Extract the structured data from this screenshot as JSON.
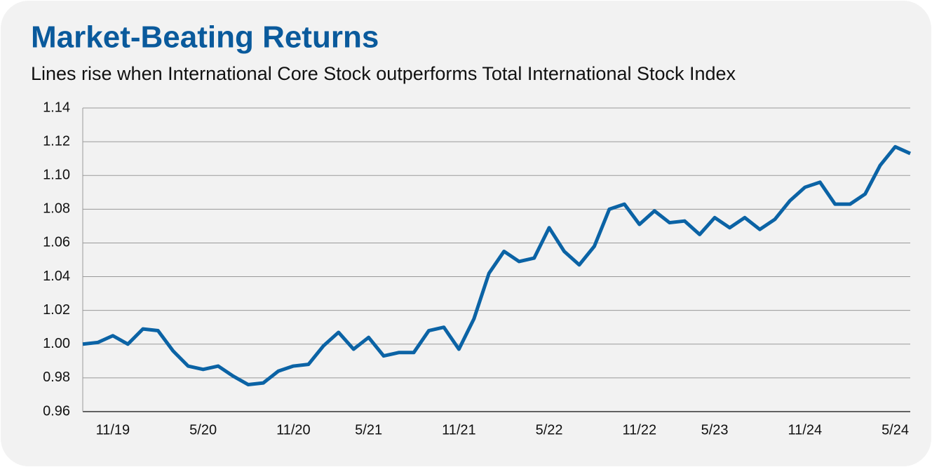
{
  "chart_data": {
    "type": "line",
    "title": "Market-Beating Returns",
    "subtitle": "Lines rise when International Core Stock outperforms Total International Stock Index",
    "categories": [
      null,
      null,
      "11/19",
      null,
      null,
      null,
      null,
      null,
      "5/20",
      null,
      null,
      null,
      null,
      null,
      "11/20",
      null,
      null,
      null,
      null,
      "5/21",
      null,
      null,
      null,
      null,
      null,
      "11/21",
      null,
      null,
      null,
      null,
      null,
      "5/22",
      null,
      null,
      null,
      null,
      null,
      "11/22",
      null,
      null,
      null,
      null,
      "5/23",
      null,
      null,
      null,
      null,
      null,
      "11/24",
      null,
      null,
      null,
      null,
      null,
      "5/24",
      null
    ],
    "series": [
      {
        "color": "#0b63a5",
        "values": [
          1.0,
          1.001,
          1.005,
          1.0,
          1.009,
          1.008,
          0.996,
          0.987,
          0.985,
          0.987,
          0.981,
          0.976,
          0.977,
          0.984,
          0.987,
          0.988,
          0.999,
          1.007,
          0.997,
          1.004,
          0.993,
          0.995,
          0.995,
          1.008,
          1.01,
          0.997,
          1.015,
          1.042,
          1.055,
          1.049,
          1.051,
          1.069,
          1.055,
          1.047,
          1.058,
          1.08,
          1.083,
          1.071,
          1.079,
          1.072,
          1.073,
          1.065,
          1.075,
          1.069,
          1.075,
          1.068,
          1.074,
          1.085,
          1.093,
          1.096,
          1.083,
          1.083,
          1.089,
          1.106,
          1.117,
          1.113
        ]
      }
    ],
    "ylim": [
      0.96,
      1.14
    ],
    "yticks": [
      {
        "value": 0.96,
        "label": "0.96"
      },
      {
        "value": 0.98,
        "label": "0.98"
      },
      {
        "value": 1.0,
        "label": "1.00"
      },
      {
        "value": 1.02,
        "label": "1.02"
      },
      {
        "value": 1.04,
        "label": "1.04"
      },
      {
        "value": 1.06,
        "label": "1.06"
      },
      {
        "value": 1.08,
        "label": "1.08"
      },
      {
        "value": 1.1,
        "label": "1.10"
      },
      {
        "value": 1.12,
        "label": "1.12"
      },
      {
        "value": 1.14,
        "label": "1.14"
      }
    ],
    "grid": true
  }
}
